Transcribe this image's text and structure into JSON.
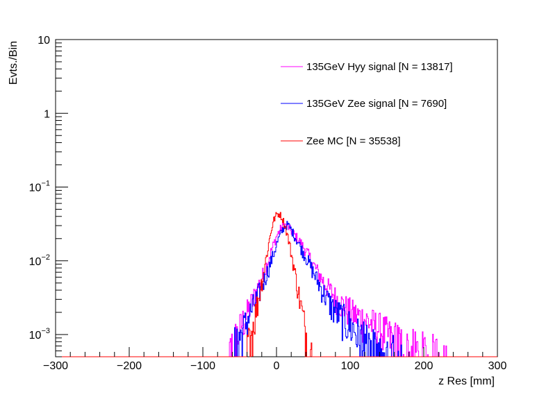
{
  "chart_data": {
    "type": "line",
    "style": "histogram-steps",
    "title": "",
    "xlabel": "z Res [mm]",
    "ylabel": "Evts./Bin",
    "xlim": [
      -300,
      300
    ],
    "ylim": [
      0.0005,
      10
    ],
    "yscale": "log",
    "x_ticks": [
      -300,
      -200,
      -100,
      0,
      100,
      200,
      300
    ],
    "x_tick_labels": [
      "−300",
      "−200",
      "−100",
      "0",
      "100",
      "200",
      "300"
    ],
    "y_ticks": [
      {
        "value": 0.001,
        "base": "10",
        "exp": "−3"
      },
      {
        "value": 0.01,
        "base": "10",
        "exp": "−2"
      },
      {
        "value": 0.1,
        "base": "10",
        "exp": "−1"
      },
      {
        "value": 1,
        "base": "1",
        "exp": ""
      },
      {
        "value": 10,
        "base": "10",
        "exp": ""
      }
    ],
    "grid": false,
    "legend_position": "top-right",
    "series": [
      {
        "name": "135GeV Hyy signal [N = 13817]",
        "color": "#ff00ff",
        "x": [
          -65,
          -60,
          -55,
          -50,
          -45,
          -40,
          -35,
          -30,
          -25,
          -20,
          -15,
          -10,
          -5,
          0,
          5,
          10,
          15,
          20,
          25,
          30,
          35,
          40,
          45,
          50,
          55,
          60,
          65,
          70,
          75,
          80,
          85,
          90,
          95,
          100,
          105,
          110,
          115,
          120,
          125,
          130,
          135,
          140,
          145,
          150,
          155,
          160,
          165,
          170,
          175,
          180,
          185,
          190,
          195,
          200,
          205,
          210,
          215,
          220,
          225,
          230,
          235
        ],
        "values": [
          0.0006,
          0.0008,
          0.0009,
          0.0012,
          0.0016,
          0.002,
          0.0026,
          0.0034,
          0.0046,
          0.006,
          0.008,
          0.0115,
          0.016,
          0.022,
          0.027,
          0.031,
          0.029,
          0.025,
          0.022,
          0.019,
          0.016,
          0.0135,
          0.011,
          0.0088,
          0.0072,
          0.006,
          0.005,
          0.0043,
          0.0037,
          0.0032,
          0.0028,
          0.0025,
          0.0023,
          0.0021,
          0.0019,
          0.0018,
          0.0017,
          0.0016,
          0.0015,
          0.0014,
          0.0013,
          0.0012,
          0.0011,
          0.001,
          0.0009,
          0.00085,
          0.0008,
          0.00075,
          0.0007,
          0.00066,
          0.00062,
          0.0006,
          0.00058,
          0.00056,
          0.00054,
          0.00052,
          0.0005,
          0.0005,
          0.0005,
          0.0005,
          0.0005
        ]
      },
      {
        "name": "135GeV Zee signal [N = 7690]",
        "color": "#0000ff",
        "x": [
          -60,
          -55,
          -50,
          -45,
          -40,
          -35,
          -30,
          -25,
          -20,
          -15,
          -10,
          -5,
          0,
          5,
          10,
          15,
          20,
          25,
          30,
          35,
          40,
          45,
          50,
          55,
          60,
          65,
          70,
          75,
          80,
          85,
          90,
          95,
          100,
          105,
          110,
          115,
          120,
          125,
          130,
          135,
          140,
          145,
          150,
          155,
          160,
          165,
          170
        ],
        "values": [
          0.0006,
          0.0008,
          0.0009,
          0.0012,
          0.0016,
          0.0021,
          0.0027,
          0.0035,
          0.0047,
          0.0063,
          0.0085,
          0.012,
          0.017,
          0.023,
          0.029,
          0.031,
          0.026,
          0.021,
          0.017,
          0.0135,
          0.011,
          0.0088,
          0.0069,
          0.0054,
          0.0043,
          0.0035,
          0.0029,
          0.0024,
          0.0021,
          0.0019,
          0.0017,
          0.0015,
          0.0013,
          0.0012,
          0.001,
          0.0009,
          0.0008,
          0.0007,
          0.00065,
          0.0006,
          0.00057,
          0.00054,
          0.00052,
          0.0005,
          0.0005,
          0.0005,
          0.0005
        ]
      },
      {
        "name": "Zee MC [N = 35538]",
        "color": "#ff0000",
        "x": [
          -40,
          -36,
          -32,
          -28,
          -24,
          -20,
          -16,
          -12,
          -8,
          -4,
          0,
          4,
          8,
          12,
          16,
          20,
          24,
          28,
          32,
          36,
          40,
          44,
          48
        ],
        "values": [
          0.0006,
          0.0009,
          0.0014,
          0.0022,
          0.0034,
          0.0055,
          0.009,
          0.015,
          0.025,
          0.036,
          0.043,
          0.043,
          0.037,
          0.028,
          0.019,
          0.012,
          0.0075,
          0.0045,
          0.0027,
          0.0016,
          0.001,
          0.0006,
          0.0005
        ]
      }
    ]
  }
}
